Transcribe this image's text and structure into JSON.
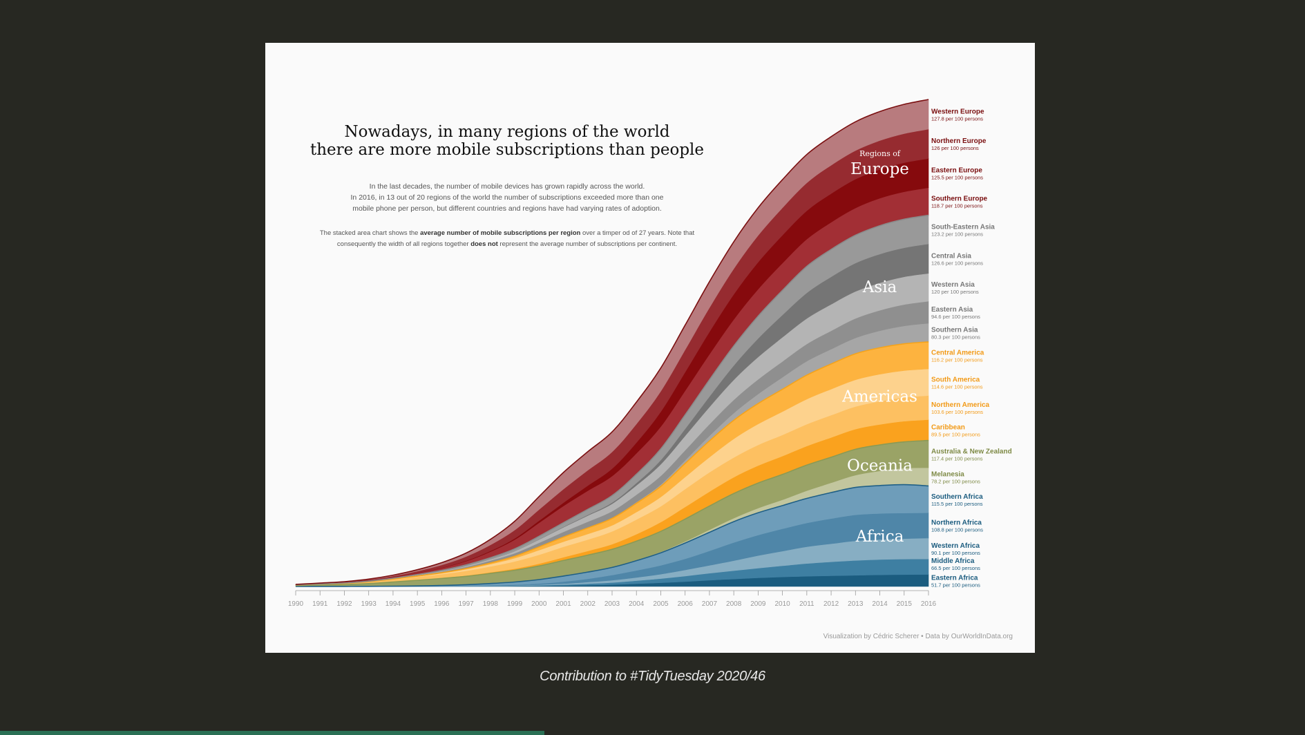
{
  "title_lines": [
    "Nowadays, in many regions of the world",
    "there are more mobile subscriptions than people"
  ],
  "description_1": [
    "In the last decades, the number of mobile devices has grown rapidly across the world.",
    "In 2016, in 13 out of 20 regions of the world the number of subscriptions exceeded more than one",
    "mobile phone per person, but different countries and regions have had varying rates of adoption."
  ],
  "description_2": {
    "line1_pre": "The stacked area chart shows the ",
    "line1_bold": "average number of mobile subscriptions per region",
    "line1_post": " over a timper od of 27 years. Note that",
    "line2_pre": "consequently the width of all regions together ",
    "line2_bold": "does not",
    "line2_post": " represent the average number of subscriptions per continent."
  },
  "regions_of_label": "Regions of",
  "caption": "Visualization by Cédric Scherer  •  Data by OurWorldInData.org",
  "contribution": "Contribution to #TidyTuesday 2020/46",
  "slide_progress": 0.417,
  "chart_data": {
    "type": "area",
    "stacked": true,
    "x": [
      1990,
      1991,
      1992,
      1993,
      1994,
      1995,
      1996,
      1997,
      1998,
      1999,
      2000,
      2001,
      2002,
      2003,
      2004,
      2005,
      2006,
      2007,
      2008,
      2009,
      2010,
      2011,
      2012,
      2013,
      2014,
      2015,
      2016
    ],
    "ylim": [
      0,
      2190
    ],
    "grid": false,
    "legend": "labels at right end",
    "continents": [
      {
        "name": "Africa",
        "color": "#1f5f86",
        "label_series": "Northern Africa"
      },
      {
        "name": "Oceania",
        "color": "#8a9a55",
        "label_series": "Australia & New Zealand"
      },
      {
        "name": "Americas",
        "color": "#f5a31a",
        "label_series": "Northern America"
      },
      {
        "name": "Asia",
        "color": "#8a8a8a",
        "label_series": "Western Asia"
      },
      {
        "name": "Europe",
        "color": "#7a0f10",
        "label_series": "Eastern Europe"
      }
    ],
    "series": [
      {
        "name": "Eastern Africa",
        "value_label": "51.7 per 100 persons",
        "continent": "Africa",
        "fill": "#1b5c7f",
        "label_color": "#1b5c7f",
        "end_offset": 0,
        "values": [
          0,
          0,
          0,
          0.1,
          0.2,
          0.3,
          0.4,
          0.6,
          1,
          1.5,
          2.5,
          4,
          6,
          8,
          12,
          16,
          21,
          27,
          32,
          37,
          41,
          44,
          46,
          48,
          50,
          51,
          51.7
        ]
      },
      {
        "name": "Middle Africa",
        "value_label": "66.5 per 100 persons",
        "continent": "Africa",
        "fill": "#3e7fa2",
        "label_color": "#1b5c7f",
        "end_offset": -6,
        "values": [
          0,
          0,
          0,
          0,
          0.1,
          0.2,
          0.3,
          0.6,
          1,
          1.6,
          2.7,
          4,
          6,
          9,
          13,
          18,
          24,
          30,
          36,
          42,
          48,
          55,
          60,
          64,
          66,
          67,
          66.5
        ]
      },
      {
        "name": "Western Africa",
        "value_label": "90.1 per 100 persons",
        "continent": "Africa",
        "fill": "#87aec3",
        "label_color": "#1b5c7f",
        "end_offset": 0,
        "values": [
          0,
          0,
          0,
          0,
          0.1,
          0.2,
          0.3,
          0.4,
          0.8,
          1.3,
          2.6,
          4,
          7,
          10,
          14,
          19,
          26,
          34,
          43,
          54,
          63,
          72,
          78,
          84,
          86,
          88,
          90.1
        ]
      },
      {
        "name": "Northern Africa",
        "value_label": "108.8 per 100 persons",
        "continent": "Africa",
        "fill": "#4f86a8",
        "label_color": "#1b5c7f",
        "end_offset": 0,
        "values": [
          0,
          0.1,
          0.1,
          0.1,
          0.2,
          0.3,
          0.5,
          1,
          2,
          3,
          5,
          9,
          14,
          22,
          30,
          38,
          48,
          62,
          78,
          88,
          96,
          102,
          108,
          112,
          112,
          110,
          108.8
        ]
      },
      {
        "name": "Southern Africa",
        "value_label": "115.5 per 100 persons",
        "continent": "Africa",
        "fill": "#6e9dba",
        "label_color": "#1b5c7f",
        "end_offset": 0,
        "values": [
          0.1,
          0.2,
          0.3,
          0.4,
          0.7,
          1.5,
          3,
          5,
          8,
          12,
          17,
          24,
          29,
          33,
          42,
          54,
          68,
          80,
          90,
          96,
          100,
          106,
          112,
          118,
          120,
          122,
          115.5
        ]
      },
      {
        "name": "Melanesia",
        "value_label": "78.2 per 100 persons",
        "continent": "Oceania",
        "fill": "#c2c69e",
        "label_color": "#7e8a46",
        "end_offset": 0,
        "values": [
          0,
          0,
          0,
          0,
          0,
          0.1,
          0.1,
          0.2,
          0.3,
          0.4,
          0.5,
          0.6,
          0.8,
          1,
          2,
          4,
          7,
          11,
          15,
          20,
          25,
          33,
          42,
          53,
          63,
          71,
          78.2
        ]
      },
      {
        "name": "Australia & New Zealand",
        "value_label": "117.4 per 100 persons",
        "continent": "Oceania",
        "fill": "#9aa366",
        "label_color": "#7e8a46",
        "end_offset": 0,
        "values": [
          4,
          6,
          8,
          12,
          18,
          24,
          30,
          36,
          43,
          50,
          58,
          66,
          72,
          77,
          82,
          88,
          96,
          102,
          106,
          108,
          109,
          110,
          110,
          111,
          112,
          113,
          117.4
        ]
      },
      {
        "name": "Caribbean",
        "value_label": "89.5 per 100 persons",
        "continent": "Americas",
        "fill": "#faa21e",
        "label_color": "#f29a17",
        "end_offset": 0,
        "values": [
          0.2,
          0.3,
          0.5,
          0.8,
          1.2,
          1.8,
          2.6,
          3.5,
          5,
          7,
          10,
          14,
          18,
          22,
          30,
          40,
          52,
          62,
          70,
          75,
          79,
          82,
          85,
          87,
          88,
          89,
          89.5
        ]
      },
      {
        "name": "Northern America",
        "value_label": "103.6 per 100 persons",
        "continent": "Americas",
        "fill": "#fdc061",
        "label_color": "#f29a17",
        "end_offset": 0,
        "values": [
          2,
          3,
          4,
          6,
          9,
          13,
          16,
          20,
          25,
          31,
          38,
          45,
          49,
          55,
          63,
          68,
          77,
          83,
          85,
          89,
          91,
          94,
          96,
          97,
          100,
          102,
          103.6
        ]
      },
      {
        "name": "South America",
        "value_label": "114.6 per 100 persons",
        "continent": "Americas",
        "fill": "#fdd28d",
        "label_color": "#f29a17",
        "end_offset": 0,
        "values": [
          0.1,
          0.2,
          0.5,
          1,
          1.6,
          2.4,
          4,
          7,
          10,
          14,
          20,
          22,
          24,
          26,
          32,
          40,
          52,
          65,
          80,
          90,
          100,
          108,
          112,
          115,
          116,
          116,
          114.6
        ]
      },
      {
        "name": "Central America",
        "value_label": "116.2 per 100 persons",
        "continent": "Americas",
        "fill": "#fdb33f",
        "label_color": "#f29a17",
        "end_offset": 0,
        "values": [
          0.1,
          0.2,
          0.3,
          0.5,
          0.8,
          1.2,
          2,
          3,
          5,
          8,
          14,
          20,
          26,
          30,
          38,
          46,
          58,
          70,
          80,
          88,
          96,
          103,
          108,
          112,
          114,
          115,
          116.2
        ]
      },
      {
        "name": "Southern Asia",
        "value_label": "80.3 per 100 persons",
        "continent": "Asia",
        "fill": "#a6a6a6",
        "label_color": "#777777",
        "end_offset": 0,
        "values": [
          0,
          0,
          0,
          0,
          0,
          0.1,
          0.1,
          0.2,
          0.3,
          0.5,
          0.8,
          1.2,
          2,
          3,
          5,
          8,
          14,
          22,
          31,
          41,
          52,
          60,
          64,
          68,
          73,
          77,
          80.3
        ]
      },
      {
        "name": "Eastern Asia",
        "value_label": "94.6 per 100 persons",
        "continent": "Asia",
        "fill": "#8f8f8f",
        "label_color": "#777777",
        "end_offset": 0,
        "values": [
          0.1,
          0.2,
          0.4,
          0.8,
          1.5,
          3,
          5,
          7,
          10,
          13,
          17,
          21,
          25,
          28,
          32,
          37,
          43,
          50,
          57,
          63,
          68,
          74,
          79,
          84,
          88,
          92,
          94.6
        ]
      },
      {
        "name": "Western Asia",
        "value_label": "120 per 100 persons",
        "continent": "Asia",
        "fill": "#b4b4b4",
        "label_color": "#777777",
        "end_offset": 0,
        "values": [
          0.2,
          0.3,
          0.4,
          0.6,
          1,
          1.6,
          2.5,
          4,
          6,
          9,
          14,
          20,
          26,
          32,
          40,
          50,
          62,
          74,
          86,
          96,
          104,
          110,
          114,
          116,
          118,
          119,
          120
        ]
      },
      {
        "name": "Central Asia",
        "value_label": "126.6 per 100 persons",
        "continent": "Asia",
        "fill": "#757575",
        "label_color": "#777777",
        "end_offset": 0,
        "values": [
          0,
          0,
          0,
          0,
          0,
          0.1,
          0.1,
          0.2,
          0.3,
          0.5,
          0.8,
          1.5,
          3,
          5,
          10,
          18,
          30,
          45,
          62,
          80,
          96,
          110,
          118,
          122,
          124,
          125,
          126.6
        ]
      },
      {
        "name": "South-Eastern Asia",
        "value_label": "123.2 per 100 persons",
        "continent": "Asia",
        "fill": "#999999",
        "label_color": "#777777",
        "end_offset": 0,
        "values": [
          0.2,
          0.3,
          0.4,
          0.6,
          0.9,
          1.5,
          2.5,
          4,
          6,
          9,
          13,
          18,
          24,
          30,
          38,
          48,
          60,
          72,
          84,
          96,
          106,
          114,
          118,
          120,
          122,
          123,
          123.2
        ]
      },
      {
        "name": "Southern Europe",
        "value_label": "118.7 per 100 persons",
        "continent": "Europe",
        "fill": "#a22f35",
        "label_color": "#7a0f10",
        "end_offset": 0,
        "values": [
          0.6,
          1.2,
          1.8,
          2.6,
          4,
          6,
          10,
          16,
          26,
          40,
          58,
          72,
          80,
          84,
          90,
          96,
          104,
          110,
          114,
          116,
          117,
          117,
          117,
          117,
          118,
          118,
          118.7
        ]
      },
      {
        "name": "Eastern Europe",
        "value_label": "125.5 per 100 persons",
        "continent": "Europe",
        "fill": "#860a0d",
        "label_color": "#7a0f10",
        "end_offset": 0,
        "values": [
          0,
          0.1,
          0.2,
          0.3,
          0.5,
          0.8,
          1.2,
          2,
          3,
          5,
          9,
          14,
          22,
          32,
          46,
          64,
          80,
          96,
          108,
          116,
          120,
          122,
          123,
          124,
          124,
          125,
          125.5
        ]
      },
      {
        "name": "Northern Europe",
        "value_label": "126 per 100 persons",
        "continent": "Europe",
        "fill": "#962b30",
        "label_color": "#7a0f10",
        "end_offset": 0,
        "values": [
          1,
          1.6,
          2.4,
          3.5,
          5,
          8,
          12,
          18,
          26,
          36,
          48,
          58,
          66,
          72,
          80,
          88,
          96,
          104,
          110,
          115,
          118,
          120,
          122,
          123,
          124,
          125,
          126
        ]
      },
      {
        "name": "Western Europe",
        "value_label": "127.8 per 100 persons",
        "continent": "Europe",
        "fill": "#b87b7e",
        "label_color": "#7a0f10",
        "end_offset": 0,
        "values": [
          0.5,
          1,
          1.6,
          2.5,
          4,
          6,
          10,
          15,
          24,
          38,
          56,
          72,
          80,
          86,
          94,
          100,
          106,
          112,
          116,
          119,
          121,
          122,
          123,
          124,
          125,
          126,
          127.8
        ]
      }
    ]
  }
}
